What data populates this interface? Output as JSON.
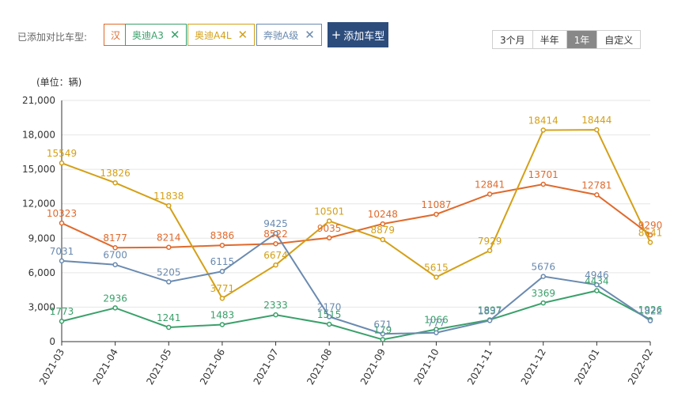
{
  "compare": {
    "label": "已添加对比车型:",
    "add_button": "添加车型",
    "tags": [
      {
        "label": "汉",
        "color": "#e06a2c",
        "removable": false
      },
      {
        "label": "奥迪A3",
        "color": "#3aa06a",
        "removable": true
      },
      {
        "label": "奥迪A4L",
        "color": "#d4a017",
        "removable": true
      },
      {
        "label": "奔驰A级",
        "color": "#6a8ab0",
        "removable": true
      }
    ]
  },
  "range_tabs": {
    "items": [
      "3个月",
      "半年",
      "1年",
      "自定义"
    ],
    "active": "1年"
  },
  "chart_data": {
    "type": "line",
    "unit_label": "(单位：辆)",
    "categories": [
      "2021-03",
      "2021-04",
      "2021-05",
      "2021-06",
      "2021-07",
      "2021-08",
      "2021-09",
      "2021-10",
      "2021-11",
      "2021-12",
      "2022-01",
      "2022-02"
    ],
    "ylim": [
      0,
      21000
    ],
    "yticks": [
      0,
      3000,
      6000,
      9000,
      12000,
      15000,
      18000,
      21000
    ],
    "ytick_labels": [
      "0",
      "3,000",
      "6,000",
      "9,000",
      "12,000",
      "15,000",
      "18,000",
      "21,000"
    ],
    "grid": true,
    "series": [
      {
        "name": "汉",
        "color": "#e06a2c",
        "values": [
          10323,
          8177,
          8214,
          8386,
          8522,
          9035,
          10248,
          11087,
          12841,
          13701,
          12781,
          9290
        ]
      },
      {
        "name": "奥迪A3",
        "color": "#3aa06a",
        "values": [
          1773,
          2936,
          1241,
          1483,
          2333,
          1515,
          179,
          1066,
          1897,
          3369,
          4434,
          1926
        ]
      },
      {
        "name": "奥迪A4L",
        "color": "#d4a017",
        "values": [
          15549,
          13826,
          11838,
          3771,
          6674,
          10501,
          8879,
          5615,
          7929,
          18414,
          18444,
          8641
        ]
      },
      {
        "name": "奔驰A级",
        "color": "#6a8ab0",
        "values": [
          7031,
          6700,
          5205,
          6115,
          9425,
          2170,
          671,
          777,
          1837,
          5676,
          4946,
          1822
        ]
      }
    ]
  }
}
